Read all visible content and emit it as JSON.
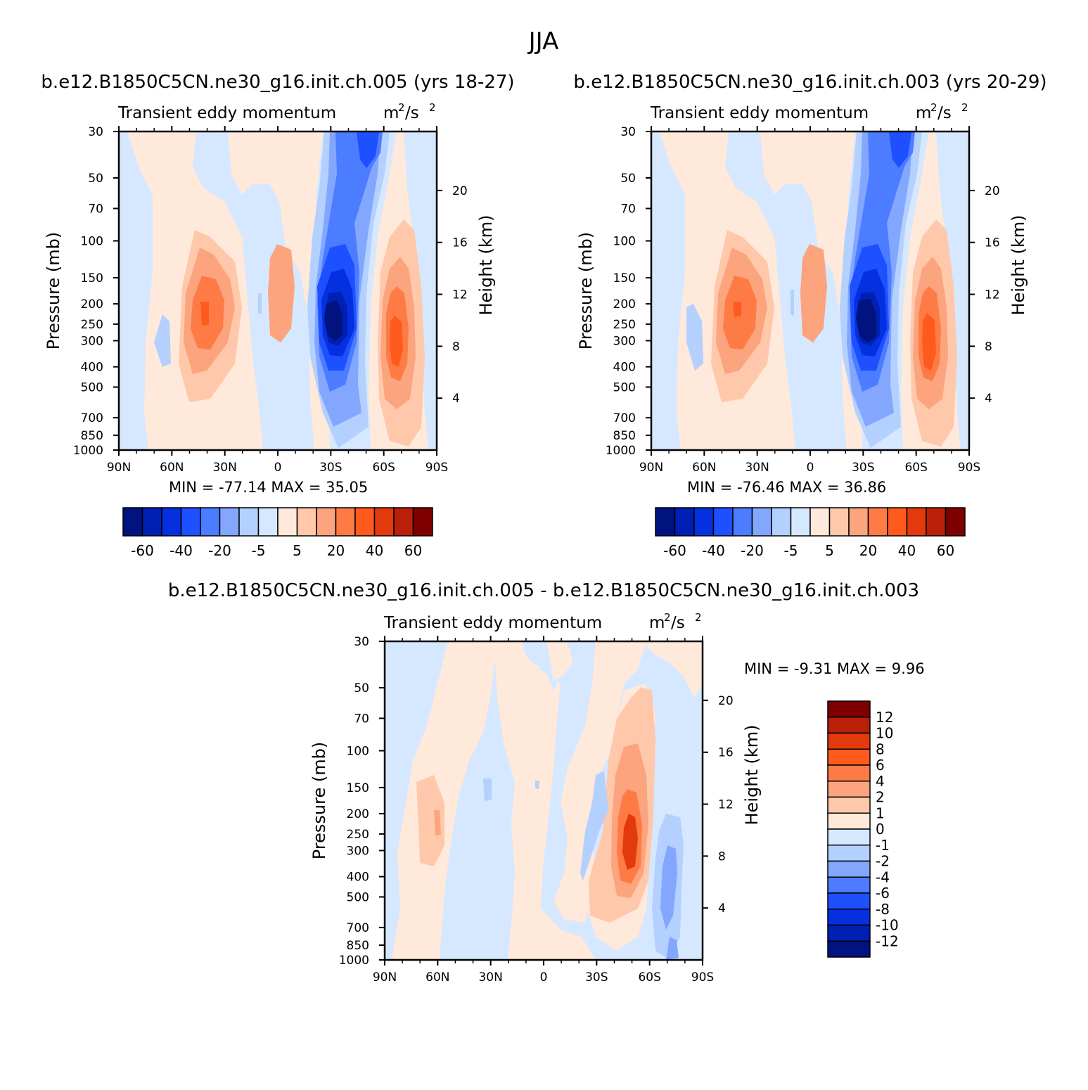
{
  "figure": {
    "title": "JJA",
    "colors": {
      "c12": "#7e0000",
      "c10": "#b8200a",
      "c8": "#e23a0c",
      "c6": "#ff5a1e",
      "c4": "#ff7b45",
      "c2": "#fba47e",
      "c1": "#ffc8ab",
      "c0": "#ffe9da",
      "m1": "#d6e8ff",
      "m2": "#b3d0ff",
      "m4": "#83a7ff",
      "m6": "#4c7cff",
      "m8": "#1e50ff",
      "m10": "#0430e0",
      "m12": "#001fb3",
      "m14": "#00137f"
    }
  },
  "chart_data": [
    {
      "type": "contour",
      "title_left": "b.e12.B1850C5CN.ne30_g16.init.ch.005 (yrs 18-27)",
      "subtitle": "Transient eddy momentum",
      "units_base": "m",
      "units_exp_1": "2",
      "units_mid": "/s",
      "units_exp_2": "2",
      "ylabel": "Pressure (mb)",
      "ylabel_right": "Height (km)",
      "x_ticks": [
        "90N",
        "60N",
        "30N",
        "0",
        "30S",
        "60S",
        "90S"
      ],
      "y_ticks": [
        "30",
        "50",
        "70",
        "100",
        "150",
        "200",
        "250",
        "300",
        "400",
        "500",
        "700",
        "850",
        "1000"
      ],
      "right_ticks": [
        "20",
        "16",
        "12",
        "8",
        "4"
      ],
      "stats": "MIN =  -77.14   MAX =   35.05",
      "min": -77.14,
      "max": 35.05,
      "colorbar_labels": [
        "-60",
        "-40",
        "-20",
        "-5",
        "5",
        "20",
        "40",
        "60"
      ],
      "colorbar_levels": [
        -70,
        -60,
        -50,
        -40,
        -30,
        -20,
        -10,
        -5,
        0,
        5,
        10,
        20,
        30,
        40,
        50,
        60,
        70
      ]
    },
    {
      "type": "contour",
      "title_left": "b.e12.B1850C5CN.ne30_g16.init.ch.003 (yrs 20-29)",
      "subtitle": "Transient eddy momentum",
      "units_base": "m",
      "units_exp_1": "2",
      "units_mid": "/s",
      "units_exp_2": "2",
      "ylabel": "Pressure (mb)",
      "ylabel_right": "Height (km)",
      "x_ticks": [
        "90N",
        "60N",
        "30N",
        "0",
        "30S",
        "60S",
        "90S"
      ],
      "y_ticks": [
        "30",
        "50",
        "70",
        "100",
        "150",
        "200",
        "250",
        "300",
        "400",
        "500",
        "700",
        "850",
        "1000"
      ],
      "right_ticks": [
        "20",
        "16",
        "12",
        "8",
        "4"
      ],
      "stats": "MIN =  -76.46   MAX =   36.86",
      "min": -76.46,
      "max": 36.86,
      "colorbar_labels": [
        "-60",
        "-40",
        "-20",
        "-5",
        "5",
        "20",
        "40",
        "60"
      ],
      "colorbar_levels": [
        -70,
        -60,
        -50,
        -40,
        -30,
        -20,
        -10,
        -5,
        0,
        5,
        10,
        20,
        30,
        40,
        50,
        60,
        70
      ]
    },
    {
      "type": "contour",
      "title_left": "b.e12.B1850C5CN.ne30_g16.init.ch.005 - b.e12.B1850C5CN.ne30_g16.init.ch.003",
      "subtitle": "Transient eddy momentum",
      "units_base": "m",
      "units_exp_1": "2",
      "units_mid": "/s",
      "units_exp_2": "2",
      "ylabel": "Pressure (mb)",
      "ylabel_right": "Height (km)",
      "x_ticks": [
        "90N",
        "60N",
        "30N",
        "0",
        "30S",
        "60S",
        "90S"
      ],
      "y_ticks": [
        "30",
        "50",
        "70",
        "100",
        "150",
        "200",
        "250",
        "300",
        "400",
        "500",
        "700",
        "850",
        "1000"
      ],
      "right_ticks": [
        "20",
        "16",
        "12",
        "8",
        "4"
      ],
      "stats": "MIN =   -9.31   MAX =    9.96",
      "min": -9.31,
      "max": 9.96,
      "colorbar_labels": [
        "12",
        "10",
        "8",
        "6",
        "4",
        "2",
        "1",
        "0",
        "-1",
        "-2",
        "-4",
        "-6",
        "-8",
        "-10",
        "-12"
      ],
      "colorbar_levels": [
        -12,
        -10,
        -8,
        -6,
        -4,
        -2,
        -1,
        0,
        1,
        2,
        4,
        6,
        8,
        10,
        12
      ]
    }
  ]
}
